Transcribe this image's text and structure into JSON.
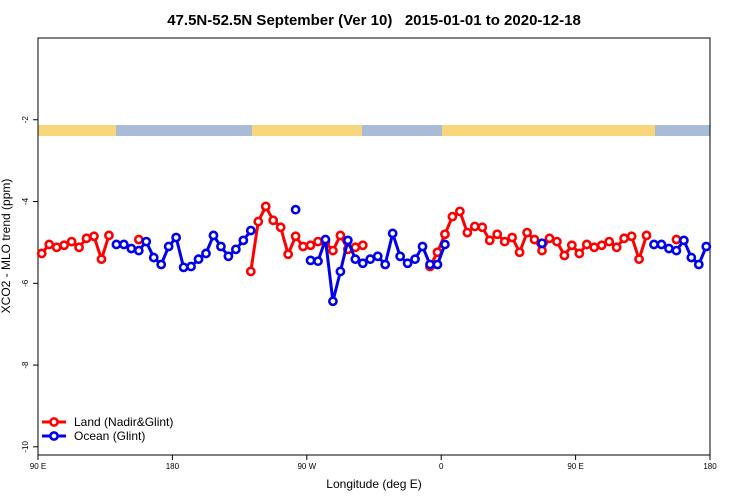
{
  "chart_data": {
    "type": "line",
    "title": "47.5N-52.5N September (Ver 10)   2015-01-01 to 2020-12-18",
    "xlabel": "Longitude (deg E)",
    "ylabel": "XCO2 - MLO trend (ppm)",
    "xlim": [
      90,
      540
    ],
    "xticks": [
      {
        "value": 90,
        "label": "90 E"
      },
      180,
      {
        "value": 270,
        "label": "90 W"
      },
      {
        "value": 360,
        "label": "0"
      },
      {
        "value": 450,
        "label": "90 E"
      },
      {
        "value": 540,
        "label": "180"
      }
    ],
    "ylim": [
      -10.2,
      0
    ],
    "yticks": [
      -2,
      -4,
      -6,
      -8,
      -10
    ],
    "legend": "bottom-left",
    "x": [
      92.5,
      97.5,
      102.5,
      107.5,
      112.5,
      117.5,
      122.5,
      127.5,
      132.5,
      137.5,
      142.5,
      147.5,
      152.5,
      157.5,
      162.5,
      167.5,
      172.5,
      177.5,
      182.5,
      187.5,
      192.5,
      197.5,
      202.5,
      207.5,
      212.5,
      217.5,
      222.5,
      227.5,
      232.5,
      237.5,
      242.5,
      247.5,
      252.5,
      257.5,
      262.5,
      267.5,
      272.5,
      277.5,
      282.5,
      287.5,
      292.5,
      297.5,
      302.5,
      307.5,
      312.5,
      317.5,
      322.5,
      327.5,
      332.5,
      337.5,
      342.5,
      347.5,
      352.5,
      357.5,
      362.5,
      367.5,
      372.5,
      377.5,
      382.5,
      387.5,
      392.5,
      397.5,
      402.5,
      407.5,
      412.5,
      417.5,
      422.5,
      427.5,
      432.5,
      437.5,
      442.5,
      447.5,
      452.5,
      457.5,
      462.5,
      467.5,
      472.5,
      477.5,
      482.5,
      487.5,
      492.5,
      497.5,
      502.5,
      507.5,
      512.5,
      517.5,
      522.5,
      527.5,
      532.5,
      537.5
    ],
    "series": [
      {
        "name": "Land (Nadir&Glint)",
        "color": "#ff0000",
        "values": [
          -5.27,
          -5.05,
          -5.12,
          -5.07,
          -4.98,
          -5.12,
          -4.9,
          -4.85,
          -5.41,
          -4.83,
          null,
          null,
          null,
          -4.93,
          null,
          null,
          null,
          null,
          null,
          null,
          null,
          null,
          null,
          null,
          null,
          null,
          null,
          null,
          -5.71,
          -4.49,
          -4.12,
          -4.46,
          -4.63,
          -5.29,
          -4.85,
          -5.1,
          -5.07,
          -4.98,
          -5.0,
          -5.2,
          -4.83,
          -5.17,
          -5.12,
          -5.07,
          null,
          null,
          null,
          null,
          null,
          null,
          null,
          null,
          -5.59,
          -5.24,
          -4.8,
          -4.37,
          -4.24,
          -4.76,
          -4.61,
          -4.63,
          -4.95,
          -4.8,
          -4.98,
          -4.88,
          -5.24,
          -4.76,
          -4.93,
          -5.2,
          -4.9,
          -4.98,
          -5.32,
          -5.07,
          -5.27,
          -5.05,
          -5.12,
          -5.07,
          -4.98,
          -5.12,
          -4.9,
          -4.85,
          -5.41,
          -4.83,
          null,
          null,
          null,
          -4.93,
          null,
          null,
          null,
          null
        ]
      },
      {
        "name": "Ocean (Glint)",
        "color": "#0000ee",
        "values": [
          null,
          null,
          null,
          null,
          null,
          null,
          null,
          null,
          null,
          null,
          -5.05,
          -5.05,
          -5.15,
          -5.2,
          -4.98,
          -5.37,
          -5.54,
          -5.1,
          -4.88,
          -5.61,
          -5.59,
          -5.41,
          -5.27,
          -4.83,
          -5.1,
          -5.34,
          -5.17,
          -4.95,
          -4.71,
          null,
          null,
          null,
          null,
          null,
          -4.2,
          null,
          -5.44,
          -5.46,
          -4.93,
          -6.44,
          -5.71,
          -4.95,
          -5.41,
          -5.51,
          -5.41,
          -5.34,
          -5.54,
          -4.78,
          -5.34,
          -5.51,
          -5.41,
          -5.1,
          -5.54,
          -5.54,
          -5.05,
          null,
          null,
          null,
          null,
          null,
          null,
          null,
          null,
          null,
          null,
          null,
          null,
          -5.02,
          null,
          null,
          null,
          null,
          null,
          null,
          null,
          null,
          null,
          null,
          null,
          null,
          null,
          null,
          -5.05,
          -5.05,
          -5.15,
          -5.2,
          -4.95,
          -5.37,
          -5.54,
          -5.1
        ]
      }
    ]
  }
}
